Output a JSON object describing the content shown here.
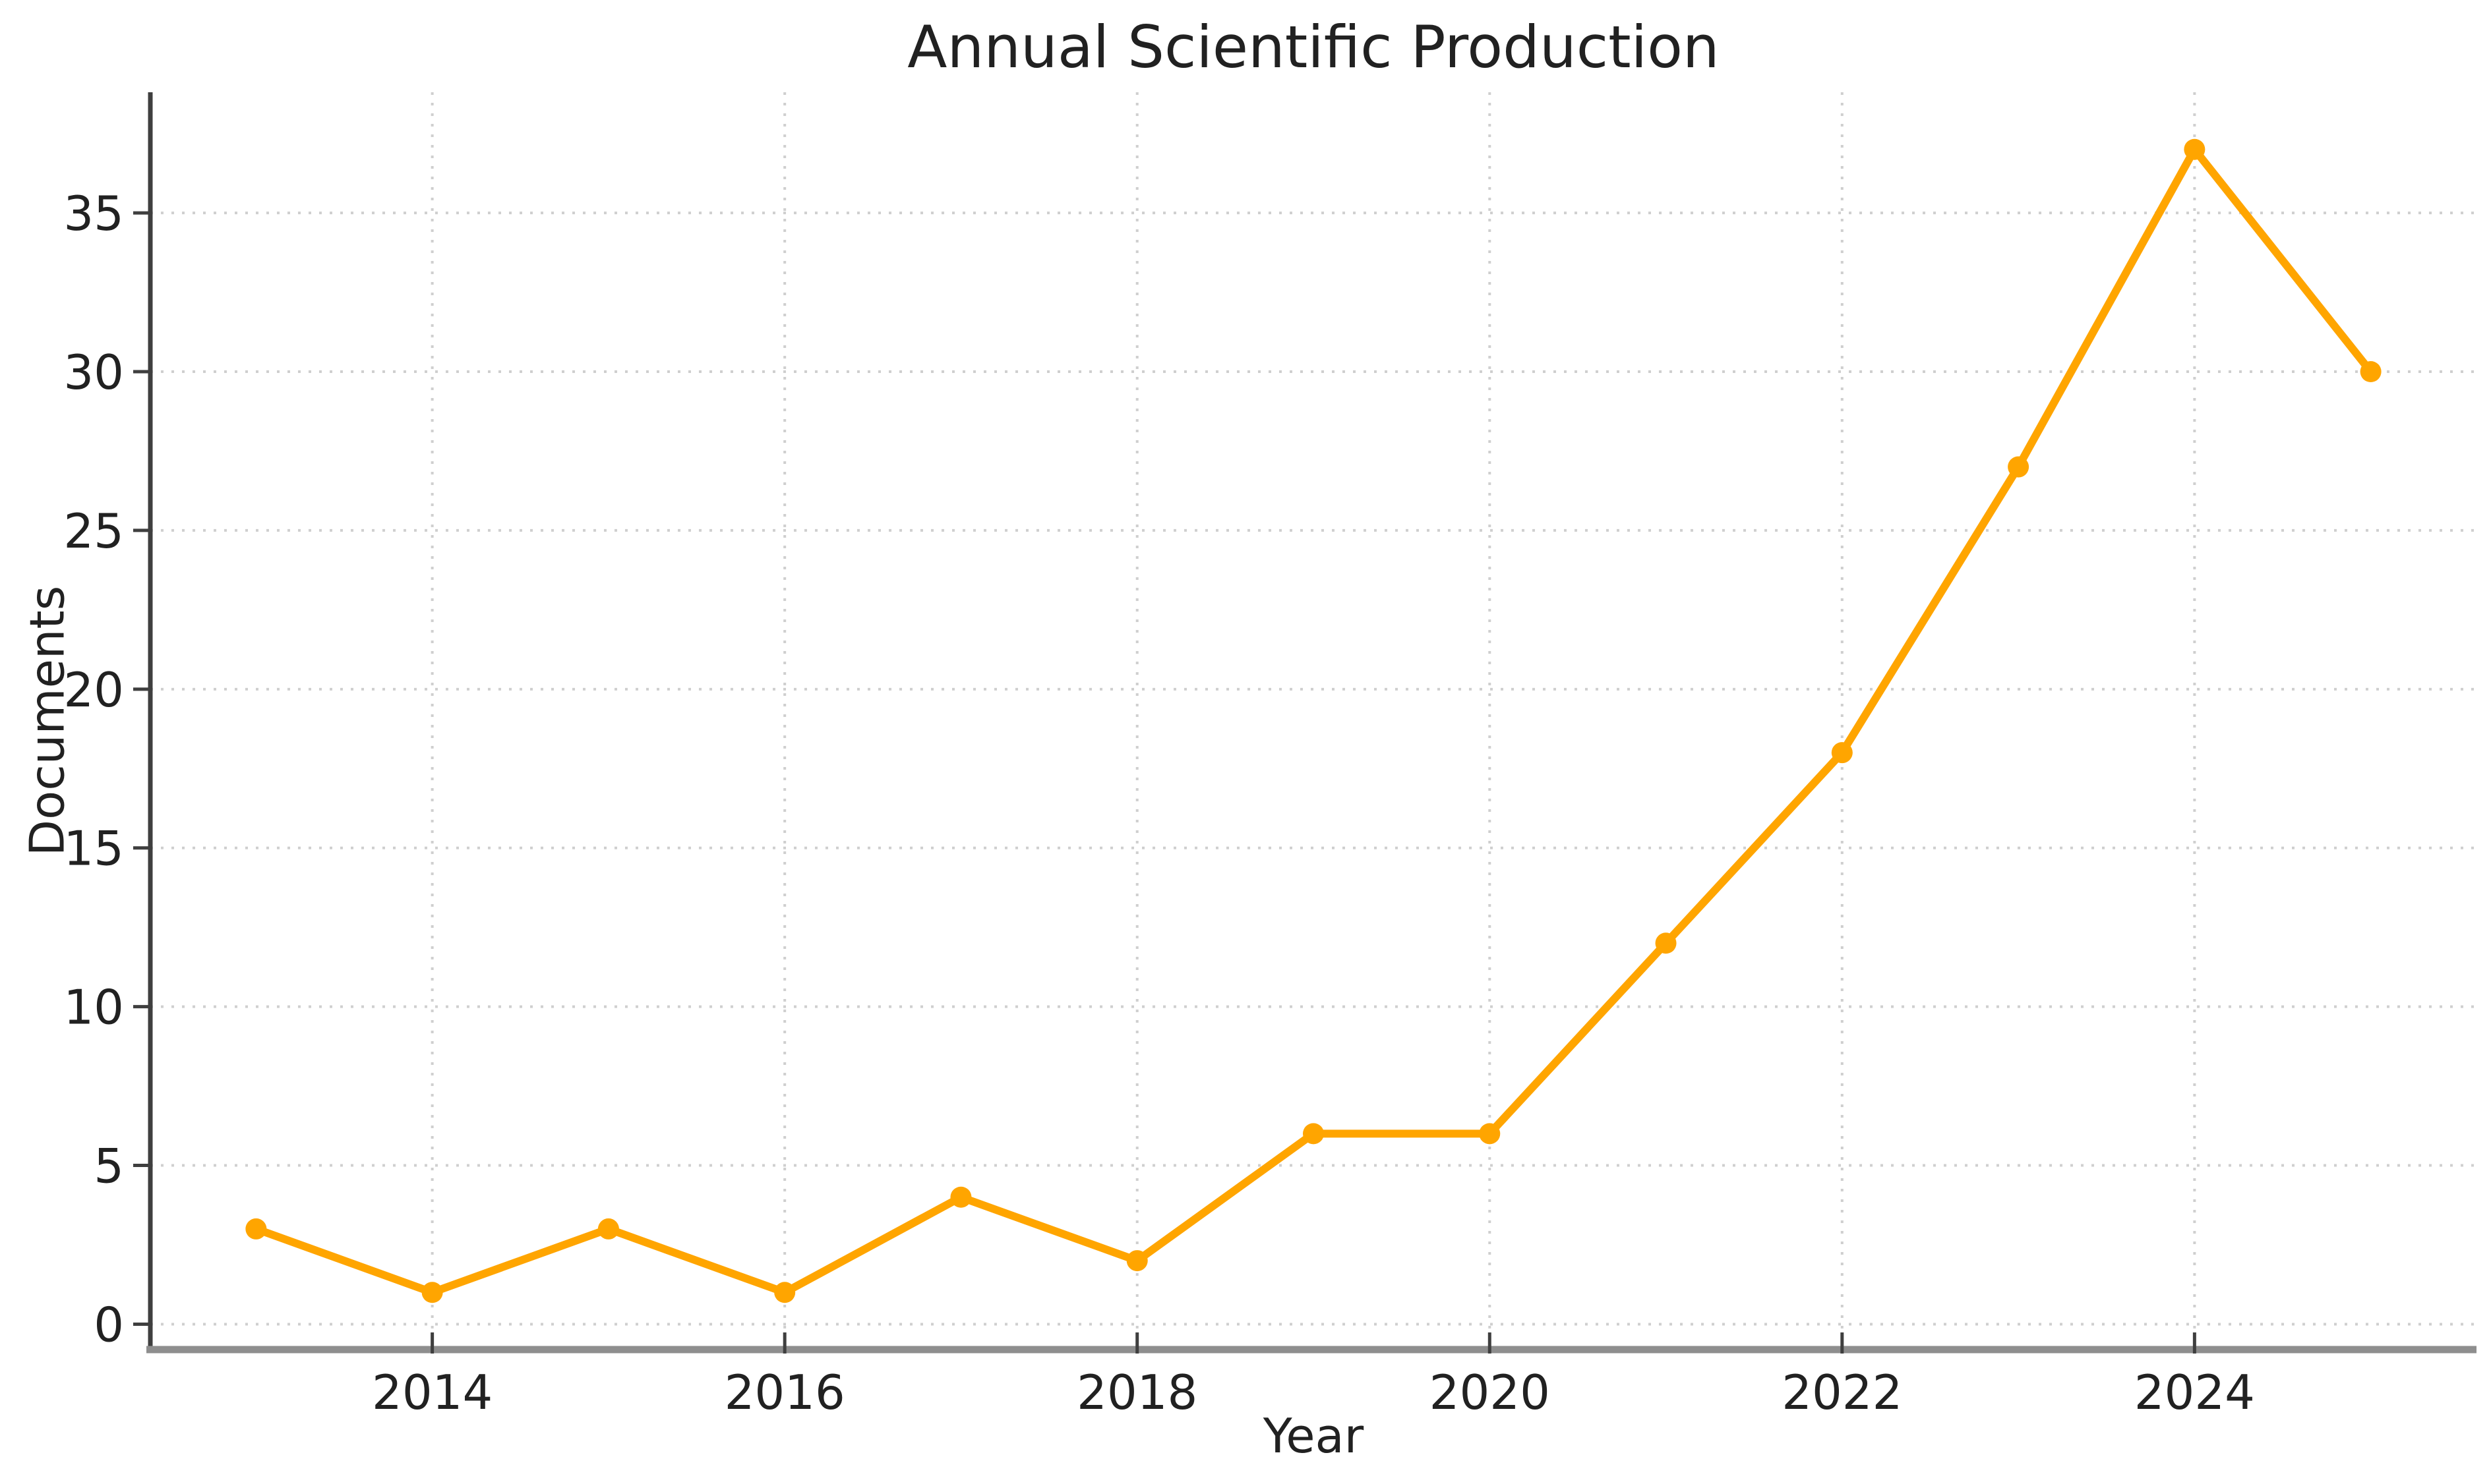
{
  "chart_data": {
    "type": "line",
    "title": "Annual Scientific Production",
    "xlabel": "Year",
    "ylabel": "Documents",
    "x": [
      2013,
      2014,
      2015,
      2016,
      2017,
      2018,
      2019,
      2020,
      2021,
      2022,
      2023,
      2024,
      2025
    ],
    "series": [
      {
        "name": "Documents",
        "values": [
          3,
          1,
          3,
          1,
          4,
          2,
          6,
          6,
          12,
          18,
          27,
          37,
          30
        ]
      }
    ],
    "xticks": {
      "values": [
        2014,
        2016,
        2018,
        2020,
        2022,
        2024
      ],
      "labels": [
        "2014",
        "2016",
        "2018",
        "2020",
        "2022",
        "2024"
      ]
    },
    "yticks": {
      "values": [
        0,
        5,
        10,
        15,
        20,
        25,
        30,
        35
      ],
      "labels": [
        "0",
        "5",
        "10",
        "15",
        "20",
        "25",
        "30",
        "35"
      ]
    },
    "xlim": [
      2012.4,
      2025.6
    ],
    "ylim": [
      -0.8,
      38.8
    ],
    "grid": true,
    "grid_style": "dotted",
    "marker": "circle",
    "legend": "none"
  },
  "colors": {
    "line": "#FFA500",
    "marker": "#FFA500",
    "grid": "#cfcfcf",
    "spine_left": "#3f3f3f",
    "spine_bottom": "#8e8e8e",
    "tick": "#3f3f3f",
    "text": "#212121",
    "background": "#ffffff"
  }
}
